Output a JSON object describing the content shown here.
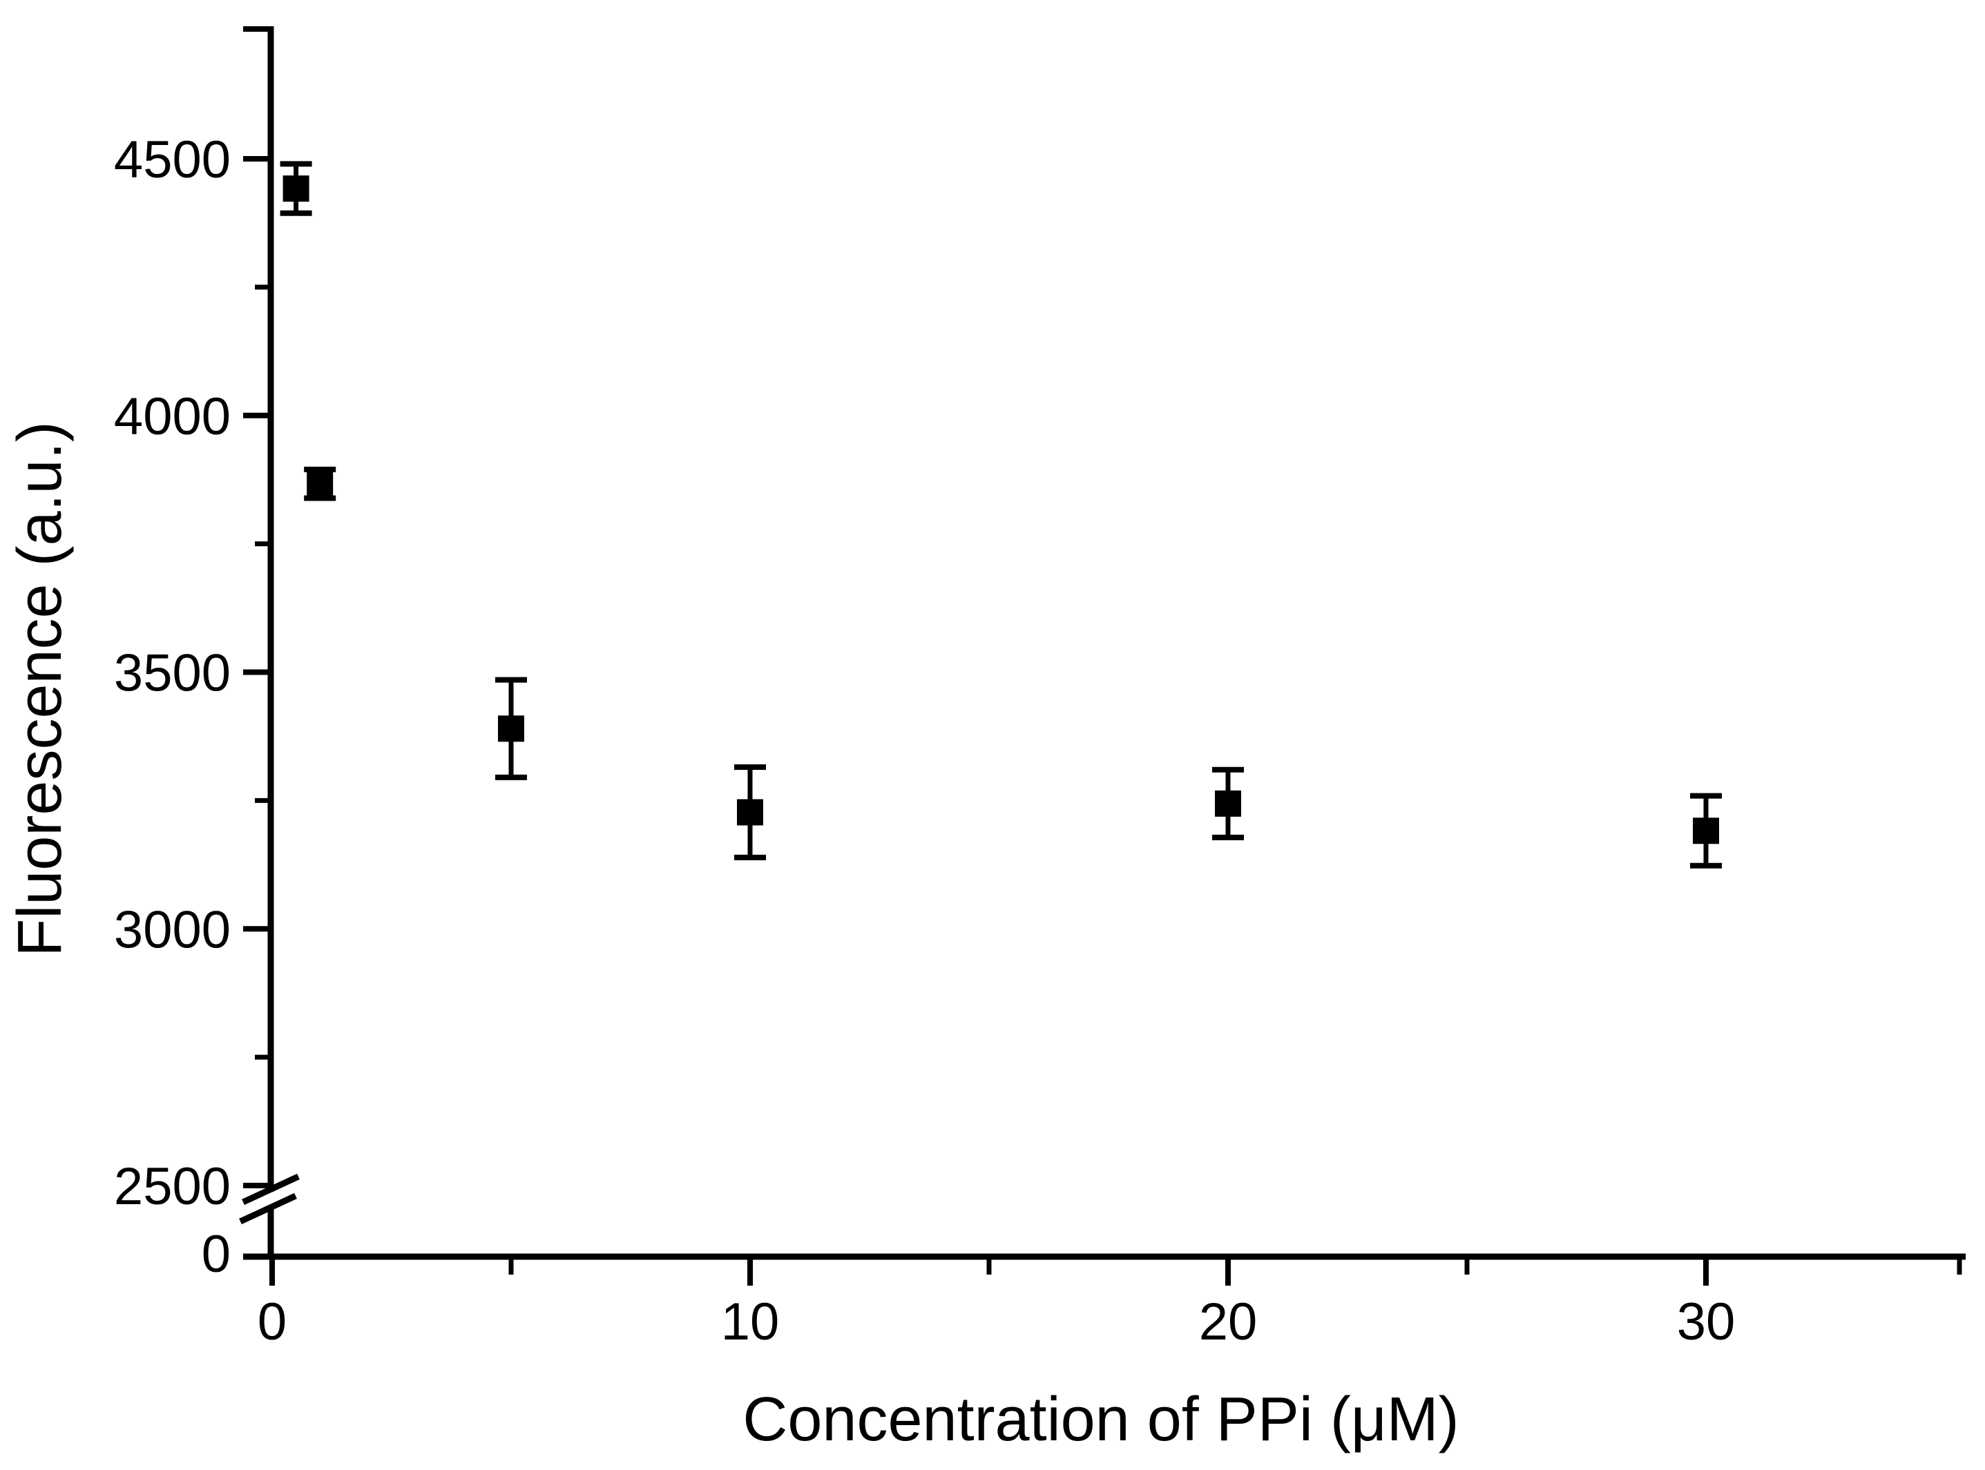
{
  "figure": {
    "background": "#ffffff",
    "foreground": "#000000"
  },
  "chart_data": {
    "type": "scatter",
    "title": "",
    "xlabel": "Concentration of PPi (μM)",
    "ylabel": "Fluorescence (a.u.)",
    "legend": null,
    "grid": false,
    "x_axis": {
      "major_ticks": [
        0,
        10,
        20,
        30
      ],
      "minor_ticks": [
        5,
        15,
        25
      ],
      "range_units": [
        0,
        35.5
      ]
    },
    "y_axis": {
      "major_ticks": [
        4500,
        4000,
        3500,
        3000,
        2500
      ],
      "minor_ticks": [
        4250,
        3750,
        3250,
        2750
      ],
      "axis_break": true,
      "label_below_break": "0",
      "range_units": [
        2500,
        4750
      ]
    },
    "series": [
      {
        "name": "fluorescence-vs-ppi-concentration",
        "marker": "filled-square",
        "color": "#000000",
        "points": [
          {
            "x": 0.5,
            "y": 4442,
            "yerr": 48
          },
          {
            "x": 1,
            "y": 3867,
            "yerr": 28
          },
          {
            "x": 5,
            "y": 3390,
            "yerr": 95
          },
          {
            "x": 10,
            "y": 3227,
            "yerr": 88
          },
          {
            "x": 20,
            "y": 3244,
            "yerr": 66
          },
          {
            "x": 30,
            "y": 3191,
            "yerr": 68
          }
        ]
      }
    ]
  }
}
